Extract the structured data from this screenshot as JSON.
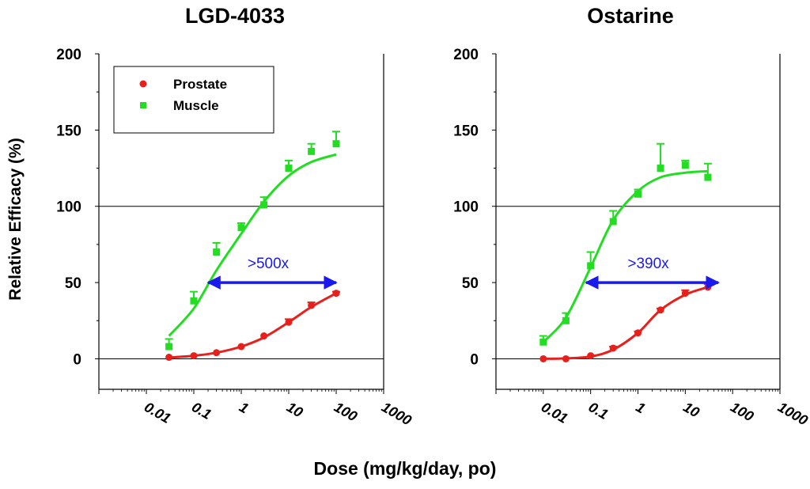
{
  "figure": {
    "ylabel": "Relative Efficacy (%)",
    "xlabel": "Dose (mg/kg/day, po)"
  },
  "legend": {
    "items": [
      {
        "label": "Prostate",
        "color": "#e8201c",
        "marker": "circle"
      },
      {
        "label": "Muscle",
        "color": "#22dd22",
        "marker": "square"
      }
    ]
  },
  "chart_data": [
    {
      "type": "scatter",
      "title": "LGD-4033",
      "x_scale": "log",
      "xlim": [
        0.001,
        1000
      ],
      "ylim": [
        -20,
        200
      ],
      "xtick_labels": [
        "0.01",
        "0.1",
        "1",
        "10",
        "100",
        "1000"
      ],
      "ytick_labels": [
        "0",
        "50",
        "100",
        "150",
        "200"
      ],
      "hlines": [
        0,
        100
      ],
      "legend_position": "top-left",
      "series": [
        {
          "name": "Prostate",
          "color": "#e8201c",
          "marker": "circle",
          "x": [
            0.03,
            0.1,
            0.3,
            1,
            3,
            10,
            30,
            100
          ],
          "y": [
            1,
            2,
            4,
            8,
            15,
            24,
            35,
            43
          ],
          "err": [
            0,
            0,
            0,
            0,
            0,
            2,
            2,
            1
          ],
          "fit": [
            [
              0.03,
              0.8
            ],
            [
              0.1,
              2
            ],
            [
              0.3,
              4
            ],
            [
              1,
              8
            ],
            [
              3,
              14
            ],
            [
              10,
              24
            ],
            [
              30,
              34
            ],
            [
              100,
              43
            ]
          ]
        },
        {
          "name": "Muscle",
          "color": "#22dd22",
          "marker": "square",
          "x": [
            0.03,
            0.1,
            0.3,
            1,
            3,
            10,
            30,
            100
          ],
          "y": [
            8,
            38,
            70,
            86,
            101,
            125,
            136,
            141
          ],
          "err": [
            5,
            6,
            6,
            3,
            5,
            5,
            5,
            8
          ],
          "fit": [
            [
              0.03,
              15
            ],
            [
              0.1,
              33
            ],
            [
              0.3,
              58
            ],
            [
              1,
              82
            ],
            [
              3,
              103
            ],
            [
              10,
              120
            ],
            [
              30,
              129
            ],
            [
              100,
              134
            ]
          ]
        }
      ],
      "annotation": {
        "text": ">500x",
        "x_from": 0.2,
        "x_to": 100,
        "y": 50,
        "color": "#1a1aee"
      }
    },
    {
      "type": "scatter",
      "title": "Ostarine",
      "x_scale": "log",
      "xlim": [
        0.001,
        1000
      ],
      "ylim": [
        -20,
        200
      ],
      "xtick_labels": [
        "0.01",
        "0.1",
        "1",
        "10",
        "100",
        "1000"
      ],
      "ytick_labels": [
        "0",
        "50",
        "100",
        "150",
        "200"
      ],
      "hlines": [
        0,
        100
      ],
      "series": [
        {
          "name": "Prostate",
          "color": "#e8201c",
          "marker": "circle",
          "x": [
            0.01,
            0.03,
            0.1,
            0.3,
            1,
            3,
            10,
            30
          ],
          "y": [
            0,
            0,
            2,
            7,
            17,
            32,
            43,
            47
          ],
          "err": [
            0,
            0,
            0,
            1,
            1,
            1,
            2,
            2
          ],
          "fit": [
            [
              0.01,
              0
            ],
            [
              0.03,
              0.3
            ],
            [
              0.1,
              1.5
            ],
            [
              0.3,
              6
            ],
            [
              1,
              17
            ],
            [
              3,
              32
            ],
            [
              10,
              42
            ],
            [
              30,
              47
            ]
          ]
        },
        {
          "name": "Muscle",
          "color": "#22dd22",
          "marker": "square",
          "x": [
            0.01,
            0.03,
            0.1,
            0.3,
            1,
            3,
            10,
            30
          ],
          "y": [
            11,
            25,
            61,
            90,
            108,
            125,
            127,
            119
          ],
          "err": [
            4,
            5,
            9,
            7,
            3,
            16,
            3,
            9
          ],
          "fit": [
            [
              0.01,
              11
            ],
            [
              0.03,
              27
            ],
            [
              0.1,
              60
            ],
            [
              0.3,
              91
            ],
            [
              1,
              110
            ],
            [
              3,
              119
            ],
            [
              10,
              122
            ],
            [
              30,
              123
            ]
          ]
        }
      ],
      "annotation": {
        "text": ">390x",
        "x_from": 0.08,
        "x_to": 50,
        "y": 50,
        "color": "#1a1aee"
      }
    }
  ]
}
